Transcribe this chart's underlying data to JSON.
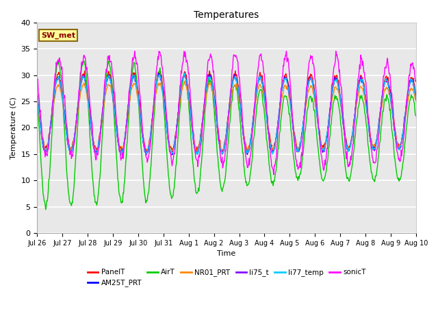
{
  "title": "Temperatures",
  "xlabel": "Time",
  "ylabel": "Temperature (C)",
  "ylim": [
    0,
    40
  ],
  "annotation": "SW_met",
  "bg_color": "#e8e8e8",
  "series_order": [
    "PanelT",
    "AM25T_PRT",
    "AirT",
    "NR01_PRT",
    "li75_t",
    "li77_temp",
    "sonicT"
  ],
  "colors": {
    "PanelT": "#ff0000",
    "AM25T_PRT": "#0000ff",
    "AirT": "#00cc00",
    "NR01_PRT": "#ff8800",
    "li75_t": "#8800ff",
    "li77_temp": "#00ccff",
    "sonicT": "#ff00ff"
  },
  "xtick_labels": [
    "Jul 26",
    "Jul 27",
    "Jul 28",
    "Jul 29",
    "Jul 30",
    "Jul 31",
    "Aug 1",
    "Aug 2",
    "Aug 3",
    "Aug 4",
    "Aug 5",
    "Aug 6",
    "Aug 7",
    "Aug 8",
    "Aug 9",
    "Aug 10"
  ],
  "xtick_positions": [
    0,
    1,
    2,
    3,
    4,
    5,
    6,
    7,
    8,
    9,
    10,
    11,
    12,
    13,
    14,
    15
  ]
}
